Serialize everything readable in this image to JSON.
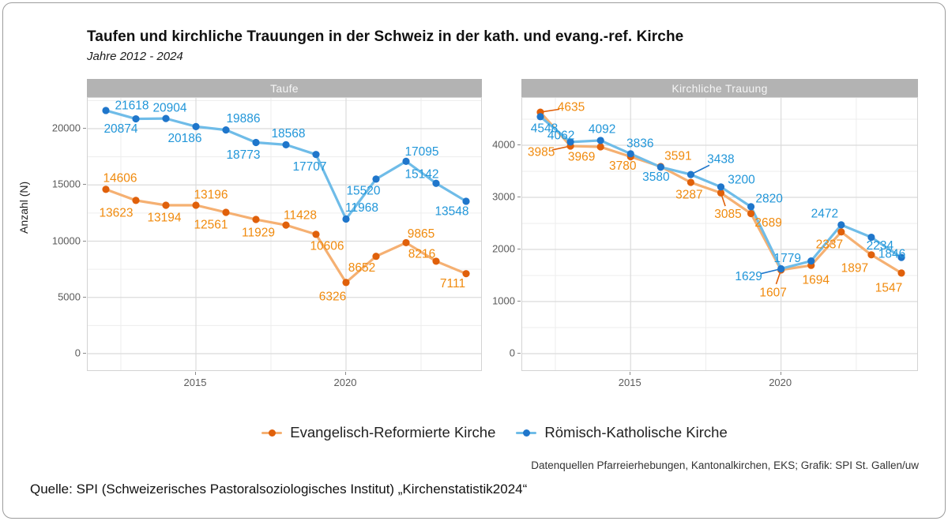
{
  "header": {
    "title": "Taufen und kirchliche Trauungen in der Schweiz in der kath. und evang.-ref. Kirche",
    "subtitle": "Jahre 2012 - 2024"
  },
  "y_axis_title": "Anzahl (N)",
  "legend": {
    "items": [
      {
        "label": "Evangelisch-Reformierte Kirche",
        "color_key": "orange"
      },
      {
        "label": "Römisch-Katholische Kirche",
        "color_key": "blue"
      }
    ]
  },
  "caption": "Datenquellen Pfarreierhebungen, Kantonalkirchen, EKS; Grafik: SPI St. Gallen/uw",
  "source_note": "Quelle: SPI (Schweizerisches Pastoralsoziologisches Institut) „Kirchenstatistik2024“",
  "colors": {
    "orange_point": "#E0600A",
    "orange_line": "#F5B072",
    "orange_label": "#F08A0D",
    "blue_point": "#1F76CB",
    "blue_line": "#6FBCE8",
    "blue_label": "#2196D9",
    "strip_bg": "#B3B3B3",
    "strip_text": "#F5F5F5",
    "grid_major": "#DBDBDB",
    "grid_minor": "#EDEDED",
    "axis_text": "#5B5B5B",
    "panel_border": "#D3D3D3"
  },
  "chart_data": [
    {
      "type": "line",
      "panel": "Taufe",
      "x": [
        2012,
        2013,
        2014,
        2015,
        2016,
        2017,
        2018,
        2019,
        2020,
        2021,
        2022,
        2023,
        2024
      ],
      "x_ticks": [
        2015,
        2020
      ],
      "y_ticks": [
        0,
        5000,
        10000,
        15000,
        20000
      ],
      "ylim": [
        0,
        23500
      ],
      "grid": true,
      "series": [
        {
          "name": "Evangelisch-Reformierte Kirche",
          "color": "orange",
          "values": [
            14606,
            13623,
            13194,
            13196,
            12561,
            11929,
            11428,
            10606,
            6326,
            8652,
            9865,
            8216,
            7111
          ],
          "label_offsets": [
            [
              18,
              -14
            ],
            [
              -25,
              16
            ],
            [
              -2,
              16
            ],
            [
              19,
              -13
            ],
            [
              -19,
              16
            ],
            [
              3,
              17
            ],
            [
              18,
              -12
            ],
            [
              14,
              15
            ],
            [
              -17,
              18
            ],
            [
              -18,
              15
            ],
            [
              19,
              -11
            ],
            [
              -18,
              -9
            ],
            [
              -17,
              13
            ]
          ],
          "leader_indices": []
        },
        {
          "name": "Römisch-Katholische Kirche",
          "color": "blue",
          "values": [
            21618,
            20874,
            20904,
            20186,
            19886,
            18773,
            18568,
            17707,
            11968,
            15520,
            17095,
            15142,
            13548
          ],
          "label_offsets": [
            [
              33,
              -6
            ],
            [
              -19,
              13
            ],
            [
              5,
              -13
            ],
            [
              -14,
              15
            ],
            [
              22,
              -14
            ],
            [
              -16,
              16
            ],
            [
              3,
              -14
            ],
            [
              -8,
              16
            ],
            [
              20,
              -14
            ],
            [
              -16,
              15
            ],
            [
              20,
              -12
            ],
            [
              -18,
              -11
            ],
            [
              -18,
              13
            ]
          ],
          "leader_indices": []
        }
      ]
    },
    {
      "type": "line",
      "panel": "Kirchliche Trauung",
      "x": [
        2012,
        2013,
        2014,
        2015,
        2016,
        2017,
        2018,
        2019,
        2020,
        2021,
        2022,
        2023,
        2024
      ],
      "x_ticks": [
        2015,
        2020
      ],
      "y_ticks": [
        0,
        1000,
        2000,
        3000,
        4000
      ],
      "ylim": [
        0,
        5075
      ],
      "grid": true,
      "series": [
        {
          "name": "Evangelisch-Reformierte Kirche",
          "color": "orange",
          "values": [
            4635,
            3985,
            3969,
            3780,
            3591,
            3287,
            3085,
            2689,
            1607,
            1694,
            2337,
            1897,
            1547
          ],
          "label_offsets": [
            [
              39,
              -6
            ],
            [
              -37,
              8
            ],
            [
              -24,
              13
            ],
            [
              -10,
              12
            ],
            [
              22,
              -13
            ],
            [
              -2,
              16
            ],
            [
              9,
              27
            ],
            [
              22,
              12
            ],
            [
              -10,
              29
            ],
            [
              6,
              19
            ],
            [
              -15,
              16
            ],
            [
              -21,
              17
            ],
            [
              -16,
              19
            ]
          ],
          "leader_indices": [
            0,
            1,
            6,
            8
          ]
        },
        {
          "name": "Römisch-Katholische Kirche",
          "color": "blue",
          "values": [
            4548,
            4062,
            4092,
            3836,
            3580,
            3438,
            3200,
            2820,
            1629,
            1779,
            2472,
            2234,
            1846
          ],
          "label_offsets": [
            [
              5,
              15
            ],
            [
              -12,
              -8
            ],
            [
              2,
              -14
            ],
            [
              12,
              -13
            ],
            [
              -6,
              13
            ],
            [
              38,
              -19
            ],
            [
              26,
              -9
            ],
            [
              23,
              -10
            ],
            [
              -41,
              10
            ],
            [
              -30,
              -3
            ],
            [
              -21,
              -14
            ],
            [
              11,
              11
            ],
            [
              -12,
              -4
            ]
          ],
          "leader_indices": [
            5,
            8
          ]
        }
      ]
    }
  ]
}
